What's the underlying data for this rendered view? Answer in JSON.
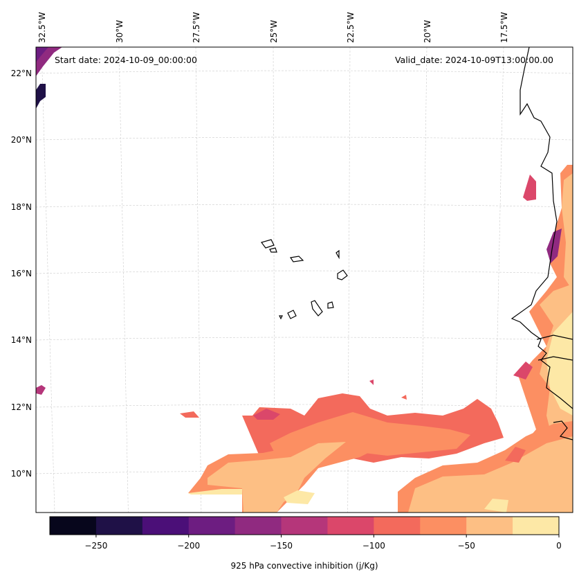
{
  "annotations": {
    "start_date": "Start date: 2024-10-09_00:00:00",
    "valid_date": "Valid_date: 2024-10-09T13:00:00.00"
  },
  "axes": {
    "lon_labels": [
      "32.5°W",
      "30°W",
      "27.5°W",
      "25°W",
      "22.5°W",
      "20°W",
      "17.5°W"
    ],
    "lat_labels": [
      "22°N",
      "20°N",
      "18°N",
      "16°N",
      "14°N",
      "12°N",
      "10°N"
    ]
  },
  "colorbar": {
    "label": "925 hPa convective inhibition (j/Kg)",
    "range": [
      -275,
      0
    ],
    "ticks": [
      "−250",
      "−200",
      "−150",
      "−100",
      "−50",
      "0"
    ],
    "tick_values": [
      -250,
      -200,
      -150,
      -100,
      -50,
      0
    ],
    "levels": [
      -275,
      -250,
      -225,
      -200,
      -175,
      -150,
      -125,
      -100,
      -75,
      -50,
      -25,
      0
    ],
    "colors": [
      "#07061c",
      "#1f1147",
      "#4b0f78",
      "#6d1d81",
      "#902a80",
      "#b5367a",
      "#db476a",
      "#f36a5c",
      "#fc8f62",
      "#fdbf84",
      "#fde8a6"
    ]
  }
}
